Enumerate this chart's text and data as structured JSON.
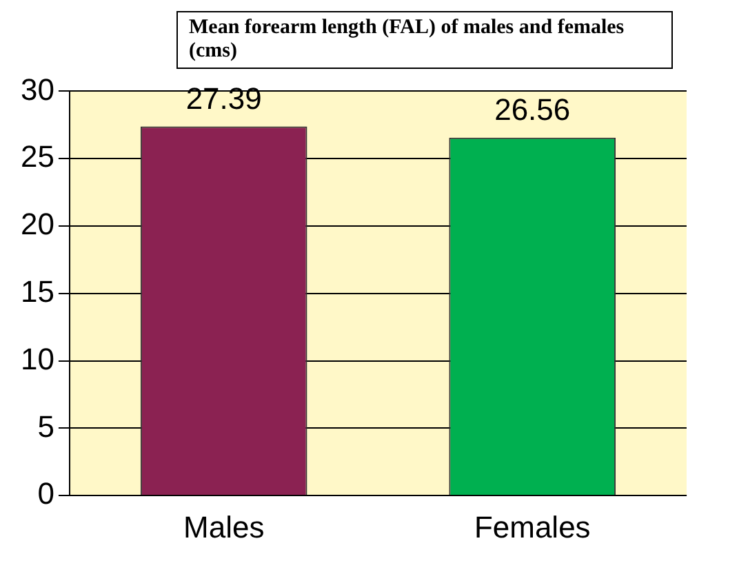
{
  "chart_data": {
    "type": "bar",
    "title": "Mean forearm length (FAL) of males and females (cms)",
    "categories": [
      "Males",
      "Females"
    ],
    "values": [
      27.39,
      26.56
    ],
    "colors": [
      "#8b2252",
      "#00b050"
    ],
    "ylim": [
      0,
      30
    ],
    "yticks": [
      0,
      5,
      10,
      15,
      20,
      25,
      30
    ],
    "grid": "y",
    "data_labels": true,
    "legend": false
  }
}
